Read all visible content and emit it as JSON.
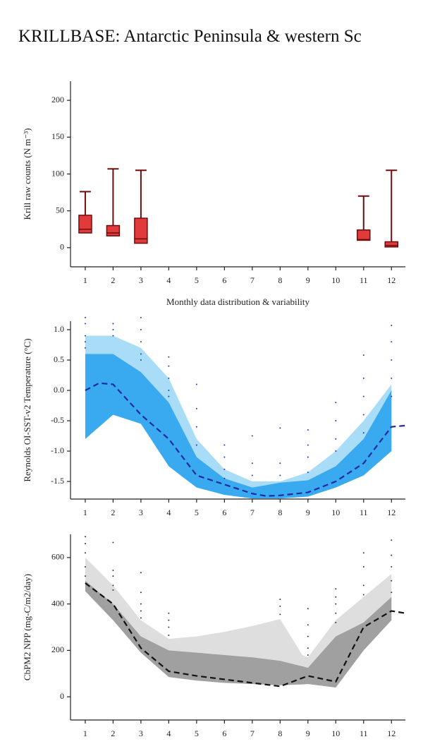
{
  "title": "KRILLBASE: Antarctic Peninsula & western Sc",
  "chart_data": [
    {
      "type": "box",
      "ylabel": "Krill raw counts (N m⁻³)",
      "xlabel": "Monthly data distribution & variability",
      "x": [
        1,
        2,
        3,
        11,
        12
      ],
      "min": [
        20,
        16,
        6,
        10,
        1
      ],
      "q1": [
        20,
        16,
        6,
        10,
        1
      ],
      "median": [
        25,
        20,
        12,
        11,
        3
      ],
      "q3": [
        44,
        30,
        40,
        24,
        8
      ],
      "max": [
        76,
        107,
        105,
        70,
        105
      ],
      "color": "#e03a3a",
      "edge": "#6e0d0d",
      "xlim": [
        0.47,
        12.5
      ],
      "xticks": [
        1,
        2,
        3,
        4,
        5,
        6,
        7,
        8,
        9,
        10,
        11,
        12
      ],
      "ylim": [
        -26,
        226
      ],
      "yticks": [
        0,
        50,
        100,
        150,
        200
      ]
    },
    {
      "type": "band",
      "ylabel": "Reynolds OI-SST-v2 Temperature (°C)",
      "bands": [
        {
          "color": "#a8dcf7",
          "x": [
            1,
            2,
            3,
            4,
            5,
            6,
            7,
            8,
            9,
            10,
            11,
            12
          ],
          "upper": [
            0.9,
            0.9,
            0.7,
            0.2,
            -0.8,
            -1.3,
            -1.5,
            -1.5,
            -1.35,
            -1.0,
            -0.5,
            0.1
          ],
          "lower": [
            -0.8,
            -0.4,
            -0.55,
            -1.25,
            -1.6,
            -1.72,
            -1.78,
            -1.78,
            -1.75,
            -1.6,
            -1.4,
            -1.0
          ]
        },
        {
          "color": "#3aaaf0",
          "x": [
            1,
            2,
            3,
            4,
            5,
            6,
            7,
            8,
            9,
            10,
            11,
            12
          ],
          "upper": [
            0.6,
            0.6,
            0.3,
            -0.2,
            -1.1,
            -1.45,
            -1.6,
            -1.52,
            -1.48,
            -1.25,
            -0.8,
            0.0
          ],
          "lower": [
            -0.8,
            -0.4,
            -0.55,
            -1.25,
            -1.6,
            -1.72,
            -1.78,
            -1.78,
            -1.75,
            -1.6,
            -1.4,
            -1.0
          ]
        }
      ],
      "line": {
        "color": "#1a2aa0",
        "x": [
          1,
          1.5,
          2,
          3,
          4,
          5,
          6,
          7,
          7.5,
          8,
          9,
          10,
          11,
          12,
          12.5
        ],
        "values": [
          0.0,
          0.12,
          0.1,
          -0.4,
          -0.8,
          -1.4,
          -1.55,
          -1.7,
          -1.74,
          -1.73,
          -1.68,
          -1.5,
          -1.2,
          -0.6,
          -0.58
        ]
      },
      "points": {
        "color": "#2233cc",
        "x": [
          1,
          1,
          1,
          1,
          1,
          2,
          2,
          2,
          3,
          3,
          3,
          3,
          3,
          4,
          4,
          4,
          4,
          4,
          5,
          5,
          5,
          5,
          6,
          6,
          6,
          6,
          7,
          7,
          7,
          8,
          8,
          8,
          9,
          9,
          9,
          9,
          10,
          10,
          10,
          10,
          11,
          11,
          11,
          11,
          11,
          12,
          12,
          12,
          12,
          12
        ],
        "y": [
          1.2,
          1.1,
          0.9,
          0.8,
          0.7,
          1.1,
          1.0,
          0.9,
          1.2,
          1.0,
          0.8,
          0.6,
          0.5,
          0.55,
          0.4,
          0.2,
          0.0,
          -0.1,
          0.1,
          -0.3,
          -0.6,
          -0.9,
          -0.9,
          -1.1,
          -1.3,
          -1.45,
          -0.75,
          -1.2,
          -1.4,
          -0.62,
          -1.2,
          -1.4,
          -0.65,
          -0.9,
          -1.1,
          -1.35,
          -0.2,
          -0.5,
          -0.8,
          -1.0,
          0.58,
          0.2,
          -0.1,
          -0.4,
          -0.7,
          1.07,
          0.8,
          0.5,
          0.2,
          -0.1
        ]
      },
      "xlim": [
        0.47,
        12.5
      ],
      "xticks": [
        1,
        2,
        3,
        4,
        5,
        6,
        7,
        8,
        9,
        10,
        11,
        12
      ],
      "ylim": [
        -1.79,
        1.14
      ],
      "yticks": [
        {
          "value": 1,
          "label": "1.0"
        },
        0.5,
        {
          "value": 0,
          "label": "0.0"
        },
        -0.5,
        {
          "value": -1,
          "label": "-1.0"
        },
        -1.5
      ]
    },
    {
      "type": "band",
      "ylabel": "CbPM2 NPP (mg-C/m2/day)",
      "bands": [
        {
          "color": "#dedede",
          "x": [
            1,
            2,
            3,
            4,
            5,
            6,
            7,
            8,
            8.8,
            9,
            10,
            11,
            12
          ],
          "upper": [
            600,
            480,
            330,
            250,
            260,
            280,
            305,
            335,
            180,
            170,
            330,
            430,
            530
          ],
          "lower": [
            455,
            330,
            190,
            85,
            70,
            60,
            55,
            50,
            52,
            55,
            40,
            200,
            330
          ]
        },
        {
          "color": "#a0a0a0",
          "x": [
            1,
            2,
            3,
            4,
            5,
            6,
            7,
            8,
            9,
            10,
            11,
            12
          ],
          "upper": [
            500,
            400,
            260,
            200,
            190,
            180,
            170,
            155,
            125,
            260,
            320,
            430
          ],
          "lower": [
            455,
            330,
            190,
            85,
            70,
            60,
            55,
            50,
            55,
            40,
            200,
            330
          ]
        }
      ],
      "line": {
        "color": "#111111",
        "x": [
          1,
          2,
          3,
          4,
          5,
          6,
          7,
          8,
          9,
          10,
          11,
          12,
          12.5
        ],
        "values": [
          490,
          400,
          210,
          110,
          90,
          75,
          60,
          45,
          90,
          65,
          300,
          370,
          360
        ]
      },
      "points": {
        "color": "#333333",
        "x": [
          1,
          1,
          1,
          1,
          1,
          2,
          2,
          2,
          2,
          2,
          3,
          3,
          3,
          3,
          3,
          4,
          4,
          4,
          4,
          8,
          8,
          8,
          9,
          9,
          9,
          9,
          9,
          10,
          10,
          10,
          10,
          10,
          11,
          11,
          11,
          11,
          12,
          12,
          12,
          12,
          12
        ],
        "y": [
          690,
          660,
          620,
          560,
          520,
          665,
          545,
          520,
          480,
          460,
          535,
          450,
          400,
          370,
          340,
          360,
          330,
          300,
          265,
          420,
          390,
          355,
          380,
          310,
          260,
          210,
          180,
          465,
          430,
          400,
          360,
          320,
          620,
          560,
          480,
          440,
          675,
          610,
          560,
          500,
          450
        ]
      },
      "xlim": [
        0.47,
        12.5
      ],
      "xticks": [
        1,
        2,
        3,
        4,
        5,
        6,
        7,
        8,
        9,
        10,
        11,
        12
      ],
      "ylim": [
        -100,
        700
      ],
      "yticks": [
        0,
        200,
        400,
        600
      ]
    }
  ]
}
